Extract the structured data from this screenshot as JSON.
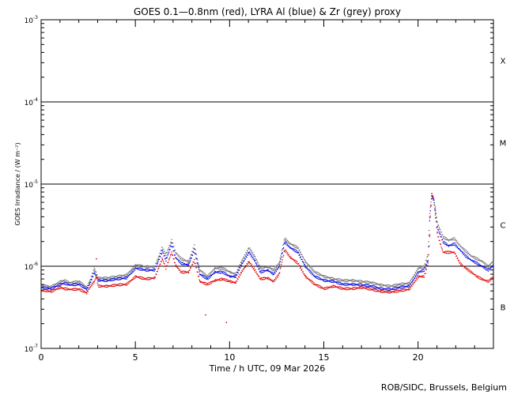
{
  "chart_data": {
    "type": "scatter",
    "title": "GOES 0.1—0.8nm (red), LYRA Al (blue) & Zr (grey) proxy",
    "xlabel": "Time / h UTC, 09 Mar 2026",
    "ylabel": "GOES Irradiance / (W m⁻²)",
    "xlim": [
      0,
      24
    ],
    "ylim": [
      1e-07,
      0.001
    ],
    "yscale": "log",
    "x_ticks": [
      0,
      5,
      10,
      15,
      20
    ],
    "y_ticks": [
      {
        "value": 1e-07,
        "mantissa": "10",
        "exp": "-7"
      },
      {
        "value": 1e-06,
        "mantissa": "10",
        "exp": "-6"
      },
      {
        "value": 1e-05,
        "mantissa": "10",
        "exp": "-5"
      },
      {
        "value": 0.0001,
        "mantissa": "10",
        "exp": "-4"
      },
      {
        "value": 0.001,
        "mantissa": "10",
        "exp": "-3"
      }
    ],
    "class_lines": [
      1e-06,
      1e-05,
      0.0001
    ],
    "flare_classes": [
      {
        "label": "B",
        "value": 3.2e-07
      },
      {
        "label": "C",
        "value": 3.2e-06
      },
      {
        "label": "M",
        "value": 3.2e-05
      },
      {
        "label": "X",
        "value": 0.00032
      }
    ],
    "colors": {
      "goes": "#e00000",
      "lyra_al": "#0000e0",
      "lyra_zr": "#707070"
    },
    "series": [
      {
        "key": "goes",
        "x": [
          0.0,
          0.5,
          1.0,
          1.2,
          1.5,
          2.0,
          2.4,
          2.6,
          2.8,
          2.9,
          3.0,
          3.5,
          4.0,
          4.5,
          5.0,
          5.5,
          6.0,
          6.4,
          6.6,
          6.9,
          7.1,
          7.4,
          7.8,
          8.1,
          8.4,
          8.8,
          9.2,
          9.6,
          10.0,
          10.3,
          10.6,
          11.0,
          11.3,
          11.6,
          12.0,
          12.3,
          12.6,
          12.9,
          13.2,
          13.6,
          14.0,
          14.5,
          15.0,
          15.5,
          16.0,
          16.5,
          17.0,
          17.5,
          18.0,
          18.5,
          19.0,
          19.5,
          20.0,
          20.3,
          20.5,
          20.6,
          20.65,
          20.7,
          20.8,
          20.9,
          21.0,
          21.3,
          21.6,
          21.9,
          22.2,
          22.5,
          22.8,
          23.1,
          23.4,
          23.7,
          24.0
        ],
        "y": [
          5.2e-07,
          5e-07,
          5.6e-07,
          5.4e-07,
          5.3e-07,
          5.3e-07,
          4.8e-07,
          5.8e-07,
          6.6e-07,
          7.6e-07,
          5.8e-07,
          5.8e-07,
          6e-07,
          6.1e-07,
          7.6e-07,
          7.1e-07,
          7.3e-07,
          1.25e-06,
          9.6e-07,
          1.5e-06,
          1.05e-06,
          8.6e-07,
          8.6e-07,
          1.2e-06,
          6.6e-07,
          6.1e-07,
          6.8e-07,
          7.1e-07,
          6.6e-07,
          6.4e-07,
          8.6e-07,
          1.15e-06,
          9.2e-07,
          7.1e-07,
          7.3e-07,
          6.6e-07,
          8.1e-07,
          1.6e-06,
          1.3e-06,
          1.1e-06,
          7.6e-07,
          6.1e-07,
          5.4e-07,
          5.8e-07,
          5.4e-07,
          5.4e-07,
          5.6e-07,
          5.3e-07,
          5e-07,
          4.9e-07,
          5.1e-07,
          5.3e-07,
          7.6e-07,
          7.6e-07,
          1.1e-06,
          2.5e-06,
          5.5e-06,
          7.6e-06,
          6.6e-06,
          4e-06,
          2.5e-06,
          1.5e-06,
          1.5e-06,
          1.5e-06,
          1.1e-06,
          9.6e-07,
          8.6e-07,
          7.6e-07,
          7e-07,
          6.6e-07,
          7.6e-07
        ]
      },
      {
        "key": "lyra_al",
        "x": [
          0.0,
          0.5,
          1.0,
          1.2,
          1.5,
          2.0,
          2.4,
          2.6,
          2.8,
          3.0,
          3.5,
          4.0,
          4.5,
          5.0,
          5.5,
          6.0,
          6.4,
          6.6,
          6.9,
          7.1,
          7.4,
          7.8,
          8.1,
          8.4,
          8.8,
          9.2,
          9.6,
          10.0,
          10.3,
          10.6,
          11.0,
          11.3,
          11.6,
          12.0,
          12.3,
          12.6,
          12.9,
          13.2,
          13.6,
          14.0,
          14.5,
          15.0,
          15.5,
          16.0,
          16.5,
          17.0,
          17.5,
          18.0,
          18.5,
          19.0,
          19.5,
          20.0,
          20.3,
          20.5,
          20.6,
          20.7,
          20.8,
          20.9,
          21.0,
          21.3,
          21.6,
          21.9,
          22.2,
          22.5,
          22.8,
          23.1,
          23.4,
          23.7,
          24.0
        ],
        "y": [
          5.6e-07,
          5.4e-07,
          6.1e-07,
          6.3e-07,
          6e-07,
          6.1e-07,
          5.3e-07,
          6.6e-07,
          8.6e-07,
          6.8e-07,
          6.8e-07,
          7.1e-07,
          7.3e-07,
          9.6e-07,
          9.1e-07,
          9.1e-07,
          1.55e-06,
          1.2e-06,
          1.9e-06,
          1.3e-06,
          1.1e-06,
          1.05e-06,
          1.6e-06,
          8.1e-07,
          7.1e-07,
          8.6e-07,
          8.6e-07,
          7.6e-07,
          7.6e-07,
          1.05e-06,
          1.5e-06,
          1.2e-06,
          8.6e-07,
          9.1e-07,
          8.1e-07,
          1e-06,
          2e-06,
          1.7e-06,
          1.5e-06,
          1e-06,
          7.6e-07,
          6.8e-07,
          6.6e-07,
          6.1e-07,
          6.1e-07,
          6e-07,
          5.8e-07,
          5.4e-07,
          5.3e-07,
          5.6e-07,
          5.8e-07,
          8.6e-07,
          9.1e-07,
          1.2e-06,
          4e-06,
          7.1e-06,
          6.6e-06,
          4.5e-06,
          3e-06,
          2e-06,
          1.8e-06,
          1.9e-06,
          1.6e-06,
          1.35e-06,
          1.2e-06,
          1.1e-06,
          1e-06,
          9.1e-07,
          1.05e-06
        ]
      },
      {
        "key": "lyra_zr",
        "x": [
          0.0,
          0.5,
          1.0,
          1.2,
          1.5,
          2.0,
          2.4,
          2.6,
          2.8,
          3.0,
          3.5,
          4.0,
          4.5,
          5.0,
          5.5,
          6.0,
          6.4,
          6.6,
          6.9,
          7.1,
          7.4,
          7.8,
          8.1,
          8.4,
          8.8,
          9.2,
          9.6,
          10.0,
          10.3,
          10.6,
          11.0,
          11.3,
          11.6,
          12.0,
          12.3,
          12.6,
          12.9,
          13.2,
          13.6,
          14.0,
          14.5,
          15.0,
          15.5,
          16.0,
          16.5,
          17.0,
          17.5,
          18.0,
          18.5,
          19.0,
          19.5,
          20.0,
          20.3,
          20.5,
          20.6,
          20.7,
          20.8,
          20.9,
          21.0,
          21.3,
          21.6,
          21.9,
          22.2,
          22.5,
          22.8,
          23.1,
          23.4,
          23.7,
          24.0
        ],
        "y": [
          5.9e-07,
          5.7e-07,
          6.6e-07,
          6.8e-07,
          6.4e-07,
          6.6e-07,
          5.6e-07,
          7.1e-07,
          9.6e-07,
          7.3e-07,
          7.3e-07,
          7.6e-07,
          7.9e-07,
          1.05e-06,
          1e-06,
          1e-06,
          1.7e-06,
          1.4e-06,
          2.1e-06,
          1.5e-06,
          1.25e-06,
          1.15e-06,
          1.8e-06,
          9.1e-07,
          7.6e-07,
          9.6e-07,
          9.6e-07,
          8.6e-07,
          8.1e-07,
          1.15e-06,
          1.7e-06,
          1.35e-06,
          9.6e-07,
          1e-06,
          9.1e-07,
          1.1e-06,
          2.2e-06,
          1.9e-06,
          1.7e-06,
          1.15e-06,
          8.6e-07,
          7.6e-07,
          7.1e-07,
          6.8e-07,
          6.8e-07,
          6.6e-07,
          6.4e-07,
          6e-07,
          5.8e-07,
          6.1e-07,
          6.3e-07,
          9.6e-07,
          1e-06,
          1.4e-06,
          4.5e-06,
          7.6e-06,
          7e-06,
          5e-06,
          3.4e-06,
          2.3e-06,
          2.1e-06,
          2.2e-06,
          1.8e-06,
          1.55e-06,
          1.35e-06,
          1.25e-06,
          1.15e-06,
          1e-06,
          1.2e-06
        ]
      }
    ],
    "outliers": [
      {
        "x": 8.7,
        "y": 2.6e-07
      },
      {
        "x": 9.8,
        "y": 2.1e-07
      },
      {
        "x": 2.9,
        "y": 1.25e-06
      }
    ],
    "credit": "ROB/SIDC, Brussels, Belgium"
  }
}
